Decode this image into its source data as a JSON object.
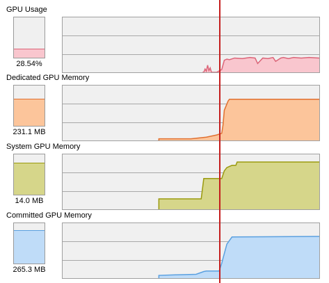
{
  "cursor_color": "#c41e1e",
  "graphs": [
    {
      "id": "gpu-usage",
      "title": "GPU Usage",
      "value_label": "28.54%",
      "meter_level": 0.22,
      "fill_color": "#f9c6ce",
      "line_color": "#dc6478",
      "chart_data": {
        "type": "area",
        "xlim": [
          0,
          1
        ],
        "ylim": [
          0,
          1
        ],
        "grid": "horizontal lines at 1/3 and 2/3",
        "x": [
          0,
          0.55,
          0.555,
          0.56,
          0.565,
          0.57,
          0.575,
          0.58,
          0.585,
          0.6,
          0.62,
          0.63,
          0.64,
          0.65,
          0.67,
          0.7,
          0.73,
          0.75,
          0.76,
          0.78,
          0.8,
          0.82,
          0.83,
          0.85,
          0.86,
          0.88,
          0.9,
          0.93,
          0.96,
          1.0
        ],
        "y": [
          0,
          0,
          0.06,
          0.02,
          0.13,
          0.03,
          0.08,
          0,
          0,
          0,
          0.05,
          0.22,
          0.24,
          0.23,
          0.26,
          0.25,
          0.27,
          0.26,
          0.16,
          0.26,
          0.25,
          0.27,
          0.2,
          0.26,
          0.27,
          0.25,
          0.27,
          0.26,
          0.27,
          0.26
        ],
        "start_x": 0.545
      }
    },
    {
      "id": "dedicated-gpu-memory",
      "title": "Dedicated GPU Memory",
      "value_label": "231.1 MB",
      "meter_level": 0.68,
      "fill_color": "#fcc59b",
      "line_color": "#e07030",
      "chart_data": {
        "type": "area",
        "xlim": [
          0,
          1
        ],
        "ylim": [
          0,
          1
        ],
        "grid": "horizontal lines at 1/3 and 2/3",
        "x": [
          0,
          0.375,
          0.5,
          0.56,
          0.6,
          0.62,
          0.625,
          0.63,
          0.645,
          0.65,
          1.0
        ],
        "y": [
          0,
          0.03,
          0.03,
          0.06,
          0.1,
          0.13,
          0.28,
          0.55,
          0.72,
          0.75,
          0.75
        ],
        "start_x": 0.375
      }
    },
    {
      "id": "system-gpu-memory",
      "title": "System GPU Memory",
      "value_label": "14.0 MB",
      "meter_level": 0.8,
      "fill_color": "#d6d68a",
      "line_color": "#9a9a0e",
      "chart_data": {
        "type": "area",
        "xlim": [
          0,
          1
        ],
        "ylim": [
          0,
          1
        ],
        "grid": "horizontal lines at 1/3 and 2/3",
        "x": [
          0,
          0.375,
          0.52,
          0.54,
          0.55,
          0.62,
          0.63,
          0.64,
          0.66,
          0.675,
          0.68,
          1.0
        ],
        "y": [
          0,
          0.19,
          0.19,
          0.19,
          0.56,
          0.56,
          0.7,
          0.76,
          0.8,
          0.8,
          0.86,
          0.86
        ],
        "start_x": 0.375
      }
    },
    {
      "id": "committed-gpu-memory",
      "title": "Committed GPU Memory",
      "value_label": "265.3 MB",
      "meter_level": 0.82,
      "fill_color": "#bfdcf8",
      "line_color": "#5aa0e0",
      "chart_data": {
        "type": "area",
        "xlim": [
          0,
          1
        ],
        "ylim": [
          0,
          1
        ],
        "grid": "horizontal lines at 1/3 and 2/3",
        "x": [
          0,
          0.375,
          0.44,
          0.52,
          0.55,
          0.56,
          0.61,
          0.62,
          0.625,
          0.64,
          0.66,
          1.0
        ],
        "y": [
          0,
          0.05,
          0.06,
          0.07,
          0.12,
          0.13,
          0.13,
          0.27,
          0.36,
          0.62,
          0.75,
          0.76
        ],
        "start_x": 0.375
      }
    }
  ]
}
